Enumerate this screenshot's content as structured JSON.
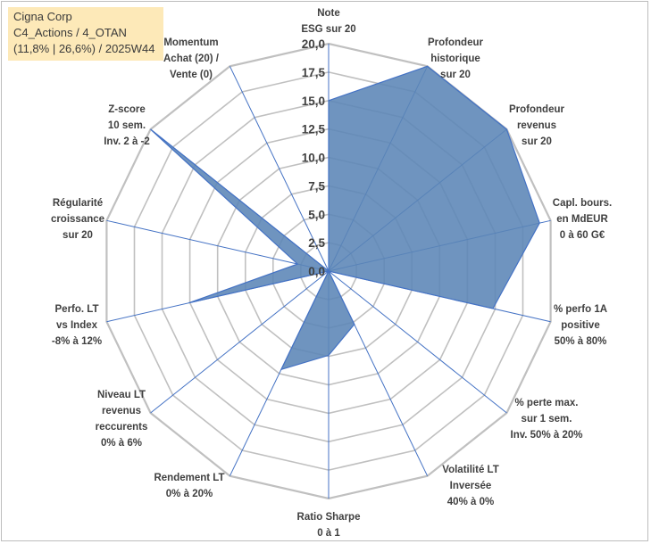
{
  "info": {
    "line1": "Cigna Corp",
    "line2": "C4_Actions / 4_OTAN",
    "line3": "(11,8% | 26,6%) / 2025W44"
  },
  "colors": {
    "fill": "#5b85b6",
    "stroke": "#4472c4",
    "grid": "#c0c0c0",
    "spoke": "#4472c4",
    "text": "#404040",
    "infobox_bg": "#fde9b8"
  },
  "chart_data": {
    "type": "radar",
    "title": "",
    "rmin": 0,
    "rmax": 20,
    "ticks": [
      "0,0",
      "2,5",
      "5,0",
      "7,5",
      "10,0",
      "12,5",
      "15,0",
      "17,5",
      "20,0"
    ],
    "axes": [
      {
        "lines": [
          "Note",
          "ESG sur 20"
        ],
        "value": 15.0
      },
      {
        "lines": [
          "Profondeur",
          "historique",
          "sur 20"
        ],
        "value": 20.0
      },
      {
        "lines": [
          "Profondeur",
          "revenus",
          "sur 20"
        ],
        "value": 20.0
      },
      {
        "lines": [
          "Capl. bours.",
          "en MdEUR",
          "0 à 60 G€"
        ],
        "value": 19.0
      },
      {
        "lines": [
          "% perfo 1A",
          "positive",
          "50% à 80%"
        ],
        "value": 14.8
      },
      {
        "lines": [
          "% perte max.",
          "sur 1 sem.",
          "Inv. 50% à 20%"
        ],
        "value": 0.0
      },
      {
        "lines": [
          "Volatilité LT",
          "Inversée",
          "40% à 0%"
        ],
        "value": 5.2
      },
      {
        "lines": [
          "Ratio Sharpe",
          "0 à 1"
        ],
        "value": 7.4
      },
      {
        "lines": [
          "Rendement LT",
          "0% à 20%"
        ],
        "value": 9.6
      },
      {
        "lines": [
          "Niveau LT",
          "revenus",
          "reccurents",
          "0% à 6%"
        ],
        "value": 0.0
      },
      {
        "lines": [
          "Perfo. LT",
          "vs Index",
          "-8% à 12%"
        ],
        "value": 12.6
      },
      {
        "lines": [
          "Régularité",
          "croissance",
          "sur 20"
        ],
        "value": 2.8
      },
      {
        "lines": [
          "Z-score",
          "10 sem.",
          "Inv. 2 à -2"
        ],
        "value": 20.0
      },
      {
        "lines": [
          "Momentum",
          "Achat (20) /",
          "Vente (0)"
        ],
        "value": 0.0
      }
    ]
  }
}
